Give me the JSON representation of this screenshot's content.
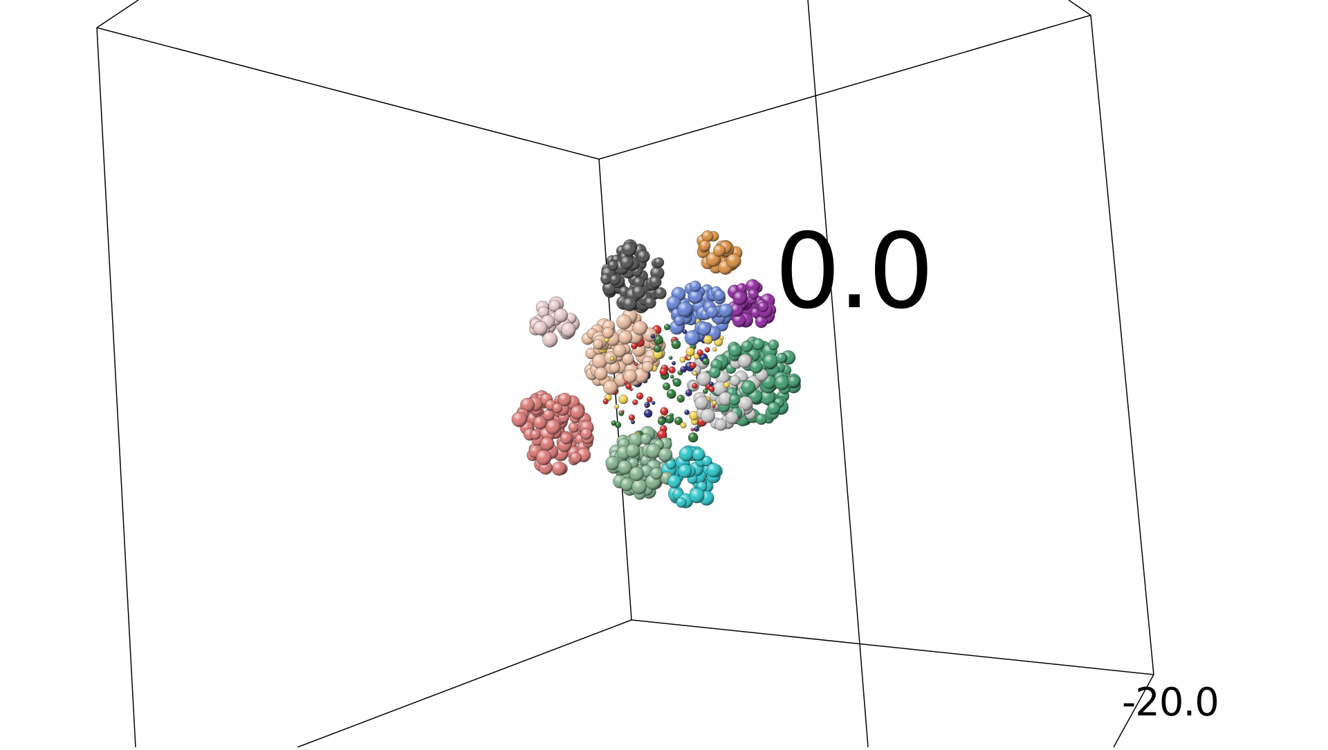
{
  "scene": {
    "labels": {
      "center_value": "0.0",
      "corner_value": "-20.0"
    },
    "box_color": "#000000",
    "background": "#ffffff",
    "cluster_colors": [
      "#4a4a4a",
      "#d9726e",
      "#e8b89a",
      "#5f7fd6",
      "#3a9a6a",
      "#7fb08a",
      "#22c3c8",
      "#8a1f9a",
      "#c7c7c7",
      "#e6c7c7",
      "#d98a3a",
      "#1f6f2a",
      "#d11a1a",
      "#1a1a7a",
      "#f0d040"
    ]
  }
}
